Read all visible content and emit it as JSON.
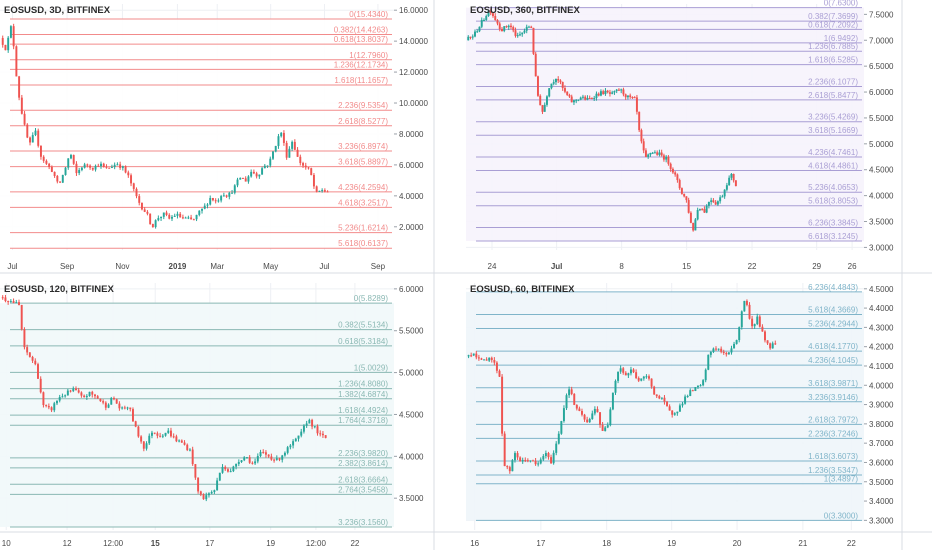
{
  "colors": {
    "up": "#26a69a",
    "down": "#ef5350",
    "axis_text": "#4a4a4a",
    "panel_border": "#d9dce3"
  },
  "chart_data": [
    {
      "type": "candlestick",
      "title": "EOSUSD, 3D, BITFINEX",
      "color": "#f28b8b",
      "fill": "#ffffff",
      "ylim": [
        0.5,
        16.4
      ],
      "yticks": [
        2,
        4,
        6,
        8,
        10,
        12,
        14,
        16
      ],
      "ytick_labels": [
        "2.0000",
        "4.0000",
        "6.0000",
        "8.0000",
        "10.0000",
        "12.0000",
        "14.0000",
        "16.0000"
      ],
      "xticks": [
        {
          "x": 0.032,
          "label": "Jul"
        },
        {
          "x": 0.172,
          "label": "Sep"
        },
        {
          "x": 0.314,
          "label": "Nov"
        },
        {
          "x": 0.455,
          "label": "2019",
          "bold": true
        },
        {
          "x": 0.557,
          "label": "Mar"
        },
        {
          "x": 0.694,
          "label": "May"
        },
        {
          "x": 0.832,
          "label": "Jul"
        },
        {
          "x": 0.969,
          "label": "Sep"
        }
      ],
      "fib_levels": [
        {
          "label": "0(15.4340)",
          "value": 15.434
        },
        {
          "label": "0.382(14.4263)",
          "value": 14.4263
        },
        {
          "label": "0.618(13.8037)",
          "value": 13.8037
        },
        {
          "label": "1(12.7960)",
          "value": 12.796
        },
        {
          "label": "1.236(12.1734)",
          "value": 12.1734
        },
        {
          "label": "1.618(11.1657)",
          "value": 11.1657
        },
        {
          "label": "2.236(9.5354)",
          "value": 9.5354
        },
        {
          "label": "2.618(8.5277)",
          "value": 8.5277
        },
        {
          "label": "3.236(6.8974)",
          "value": 6.8974
        },
        {
          "label": "3.618(5.8897)",
          "value": 5.8897
        },
        {
          "label": "4.236(4.2594)",
          "value": 4.2594
        },
        {
          "label": "4.618(3.2517)",
          "value": 3.2517
        },
        {
          "label": "5.236(1.6214)",
          "value": 1.6214
        },
        {
          "label": "5.618(0.6137)",
          "value": 0.6137
        }
      ],
      "price_path": [
        [
          0.0,
          14.2
        ],
        [
          0.015,
          13.5
        ],
        [
          0.03,
          15.1
        ],
        [
          0.045,
          11.0
        ],
        [
          0.06,
          8.8
        ],
        [
          0.075,
          7.2
        ],
        [
          0.09,
          8.2
        ],
        [
          0.105,
          6.6
        ],
        [
          0.12,
          6.0
        ],
        [
          0.135,
          5.6
        ],
        [
          0.15,
          4.6
        ],
        [
          0.165,
          5.6
        ],
        [
          0.18,
          6.8
        ],
        [
          0.195,
          5.4
        ],
        [
          0.21,
          5.9
        ],
        [
          0.225,
          6.0
        ],
        [
          0.24,
          5.8
        ],
        [
          0.255,
          6.1
        ],
        [
          0.27,
          5.7
        ],
        [
          0.285,
          5.9
        ],
        [
          0.3,
          6.1
        ],
        [
          0.315,
          5.8
        ],
        [
          0.33,
          5.2
        ],
        [
          0.345,
          4.2
        ],
        [
          0.36,
          3.4
        ],
        [
          0.375,
          2.9
        ],
        [
          0.39,
          2.0
        ],
        [
          0.405,
          2.6
        ],
        [
          0.42,
          2.8
        ],
        [
          0.435,
          2.5
        ],
        [
          0.45,
          2.8
        ],
        [
          0.465,
          2.6
        ],
        [
          0.48,
          2.5
        ],
        [
          0.495,
          2.4
        ],
        [
          0.51,
          2.9
        ],
        [
          0.525,
          3.3
        ],
        [
          0.54,
          3.9
        ],
        [
          0.555,
          3.6
        ],
        [
          0.57,
          4.2
        ],
        [
          0.585,
          4.0
        ],
        [
          0.6,
          4.5
        ],
        [
          0.615,
          5.2
        ],
        [
          0.63,
          5.0
        ],
        [
          0.645,
          5.6
        ],
        [
          0.66,
          5.3
        ],
        [
          0.675,
          5.9
        ],
        [
          0.69,
          6.1
        ],
        [
          0.705,
          7.2
        ],
        [
          0.72,
          8.2
        ],
        [
          0.735,
          6.6
        ],
        [
          0.75,
          7.6
        ],
        [
          0.765,
          6.3
        ],
        [
          0.78,
          5.9
        ],
        [
          0.795,
          5.6
        ],
        [
          0.81,
          4.1
        ],
        [
          0.825,
          4.4
        ],
        [
          0.84,
          4.25
        ]
      ]
    },
    {
      "type": "candlestick",
      "title": "EOSUSD, 360, BITFINEX",
      "color": "#a99ed4",
      "fill": "#f6f3fc",
      "ylim": [
        2.95,
        7.7
      ],
      "yticks": [
        3.0,
        3.5,
        4.0,
        4.5,
        5.0,
        5.5,
        6.0,
        6.5,
        7.0,
        7.5
      ],
      "ytick_labels": [
        "3.0000",
        "3.5000",
        "4.0000",
        "4.5000",
        "5.0000",
        "5.5000",
        "6.0000",
        "6.5000",
        "7.0000",
        "7.5000"
      ],
      "xticks": [
        {
          "x": 0.066,
          "label": "24"
        },
        {
          "x": 0.23,
          "label": "Jul",
          "bold": true
        },
        {
          "x": 0.395,
          "label": "8"
        },
        {
          "x": 0.56,
          "label": "15"
        },
        {
          "x": 0.726,
          "label": "22"
        },
        {
          "x": 0.89,
          "label": "29"
        },
        {
          "x": 0.98,
          "label": "26"
        }
      ],
      "fib_levels": [
        {
          "label": "0(7.6300)",
          "value": 7.63
        },
        {
          "label": "0.382(7.3699)",
          "value": 7.3699
        },
        {
          "label": "0.618(7.2092)",
          "value": 7.2092
        },
        {
          "label": "1(6.9492)",
          "value": 6.9492
        },
        {
          "label": "1.236(6.7885)",
          "value": 6.7885
        },
        {
          "label": "1.618(6.5285)",
          "value": 6.5285
        },
        {
          "label": "2.236(6.1077)",
          "value": 6.1077
        },
        {
          "label": "2.618(5.8477)",
          "value": 5.8477
        },
        {
          "label": "3.236(5.4269)",
          "value": 5.4269
        },
        {
          "label": "3.618(5.1669)",
          "value": 5.1669
        },
        {
          "label": "4.236(4.7461)",
          "value": 4.7461
        },
        {
          "label": "4.618(4.4861)",
          "value": 4.4861
        },
        {
          "label": "5.236(4.0653)",
          "value": 4.0653
        },
        {
          "label": "5.618(3.8053)",
          "value": 3.8053
        },
        {
          "label": "6.236(3.3845)",
          "value": 3.3845
        },
        {
          "label": "6.618(3.1245)",
          "value": 3.1245
        }
      ],
      "price_path": [
        [
          0.0,
          7.0
        ],
        [
          0.02,
          7.1
        ],
        [
          0.04,
          7.35
        ],
        [
          0.06,
          7.6
        ],
        [
          0.075,
          7.4
        ],
        [
          0.09,
          7.2
        ],
        [
          0.11,
          7.3
        ],
        [
          0.13,
          7.05
        ],
        [
          0.15,
          7.2
        ],
        [
          0.165,
          7.3
        ],
        [
          0.18,
          6.0
        ],
        [
          0.195,
          5.6
        ],
        [
          0.21,
          6.1
        ],
        [
          0.23,
          6.3
        ],
        [
          0.25,
          6.0
        ],
        [
          0.27,
          5.8
        ],
        [
          0.29,
          5.9
        ],
        [
          0.31,
          5.85
        ],
        [
          0.33,
          5.95
        ],
        [
          0.35,
          6.0
        ],
        [
          0.37,
          5.95
        ],
        [
          0.39,
          6.05
        ],
        [
          0.41,
          5.9
        ],
        [
          0.43,
          5.85
        ],
        [
          0.44,
          5.2
        ],
        [
          0.455,
          4.7
        ],
        [
          0.47,
          4.85
        ],
        [
          0.49,
          4.8
        ],
        [
          0.51,
          4.7
        ],
        [
          0.53,
          4.4
        ],
        [
          0.545,
          4.1
        ],
        [
          0.56,
          3.9
        ],
        [
          0.575,
          3.3
        ],
        [
          0.59,
          3.8
        ],
        [
          0.605,
          3.7
        ],
        [
          0.62,
          3.95
        ],
        [
          0.635,
          3.85
        ],
        [
          0.65,
          4.0
        ],
        [
          0.665,
          4.3
        ],
        [
          0.675,
          4.4
        ],
        [
          0.685,
          4.2
        ]
      ]
    },
    {
      "type": "candlestick",
      "title": "EOSUSD, 120, BITFINEX",
      "color": "#8ab8b3",
      "fill": "#f1f8fa",
      "ylim": [
        3.12,
        6.07
      ],
      "yticks": [
        3.5,
        4.0,
        4.5,
        5.0,
        5.5,
        6.0
      ],
      "ytick_labels": [
        "3.5000",
        "4.0000",
        "4.5000",
        "5.0000",
        "5.5000",
        "6.0000"
      ],
      "xticks": [
        {
          "x": 0.016,
          "label": "10"
        },
        {
          "x": 0.172,
          "label": "12"
        },
        {
          "x": 0.29,
          "label": "12:00"
        },
        {
          "x": 0.398,
          "label": "15",
          "bold": true
        },
        {
          "x": 0.538,
          "label": "17"
        },
        {
          "x": 0.694,
          "label": "19"
        },
        {
          "x": 0.81,
          "label": "12:00"
        },
        {
          "x": 0.91,
          "label": "22"
        }
      ],
      "fib_levels": [
        {
          "label": "0(5.8289)",
          "value": 5.8289
        },
        {
          "label": "0.382(5.5134)",
          "value": 5.5134
        },
        {
          "label": "0.618(5.3184)",
          "value": 5.3184
        },
        {
          "label": "1(5.0029)",
          "value": 5.0029
        },
        {
          "label": "1.236(4.8080)",
          "value": 4.808
        },
        {
          "label": "1.382(4.6874)",
          "value": 4.6874
        },
        {
          "label": "1.618(4.4924)",
          "value": 4.4924
        },
        {
          "label": "1.764(4.3718)",
          "value": 4.3718
        },
        {
          "label": "2.236(3.9820)",
          "value": 3.982
        },
        {
          "label": "2.382(3.8614)",
          "value": 3.8614
        },
        {
          "label": "2.618(3.6664)",
          "value": 3.6664
        },
        {
          "label": "2.764(3.5458)",
          "value": 3.5458
        },
        {
          "label": "3.236(3.1560)",
          "value": 3.156
        }
      ],
      "price_path": [
        [
          0.0,
          5.9
        ],
        [
          0.03,
          5.85
        ],
        [
          0.05,
          5.8
        ],
        [
          0.06,
          5.3
        ],
        [
          0.075,
          5.2
        ],
        [
          0.09,
          5.1
        ],
        [
          0.1,
          4.9
        ],
        [
          0.11,
          4.6
        ],
        [
          0.13,
          4.55
        ],
        [
          0.15,
          4.7
        ],
        [
          0.17,
          4.75
        ],
        [
          0.19,
          4.8
        ],
        [
          0.21,
          4.7
        ],
        [
          0.23,
          4.75
        ],
        [
          0.25,
          4.7
        ],
        [
          0.27,
          4.6
        ],
        [
          0.29,
          4.7
        ],
        [
          0.31,
          4.55
        ],
        [
          0.33,
          4.6
        ],
        [
          0.35,
          4.3
        ],
        [
          0.37,
          4.1
        ],
        [
          0.39,
          4.3
        ],
        [
          0.41,
          4.25
        ],
        [
          0.43,
          4.3
        ],
        [
          0.45,
          4.2
        ],
        [
          0.47,
          4.15
        ],
        [
          0.49,
          4.05
        ],
        [
          0.505,
          3.6
        ],
        [
          0.52,
          3.5
        ],
        [
          0.535,
          3.55
        ],
        [
          0.55,
          3.6
        ],
        [
          0.57,
          3.9
        ],
        [
          0.59,
          3.8
        ],
        [
          0.61,
          3.95
        ],
        [
          0.63,
          4.0
        ],
        [
          0.65,
          3.9
        ],
        [
          0.67,
          4.05
        ],
        [
          0.69,
          4.0
        ],
        [
          0.71,
          3.95
        ],
        [
          0.73,
          4.05
        ],
        [
          0.75,
          4.15
        ],
        [
          0.77,
          4.25
        ],
        [
          0.79,
          4.45
        ],
        [
          0.805,
          4.35
        ],
        [
          0.82,
          4.25
        ],
        [
          0.835,
          4.22
        ]
      ]
    },
    {
      "type": "candlestick",
      "title": "EOSUSD, 60, BITFINEX",
      "color": "#7fb4c9",
      "fill": "#eef5f9",
      "ylim": [
        3.25,
        4.53
      ],
      "yticks": [
        3.3,
        3.4,
        3.5,
        3.6,
        3.7,
        3.8,
        3.9,
        4.0,
        4.1,
        4.2,
        4.3,
        4.4,
        4.5
      ],
      "ytick_labels": [
        "3.3000",
        "3.4000",
        "3.5000",
        "3.6000",
        "3.7000",
        "3.8000",
        "3.9000",
        "4.0000",
        "4.1000",
        "4.2000",
        "4.3000",
        "4.4000",
        "4.5000"
      ],
      "xticks": [
        {
          "x": 0.022,
          "label": "16"
        },
        {
          "x": 0.19,
          "label": "17"
        },
        {
          "x": 0.357,
          "label": "18"
        },
        {
          "x": 0.522,
          "label": "19"
        },
        {
          "x": 0.688,
          "label": "20"
        },
        {
          "x": 0.855,
          "label": "21"
        },
        {
          "x": 0.978,
          "label": "22"
        }
      ],
      "fib_levels": [
        {
          "label": "6.236(4.4843)",
          "value": 4.4843
        },
        {
          "label": "5.618(4.3669)",
          "value": 4.3669
        },
        {
          "label": "5.236(4.2944)",
          "value": 4.2944
        },
        {
          "label": "4.618(4.1770)",
          "value": 4.177
        },
        {
          "label": "4.236(4.1045)",
          "value": 4.1045
        },
        {
          "label": "3.618(3.9871)",
          "value": 3.9871
        },
        {
          "label": "3.236(3.9146)",
          "value": 3.9146
        },
        {
          "label": "2.618(3.7972)",
          "value": 3.7972
        },
        {
          "label": "2.236(3.7246)",
          "value": 3.7246
        },
        {
          "label": "1.618(3.6073)",
          "value": 3.6073
        },
        {
          "label": "1.236(3.5347)",
          "value": 3.5347
        },
        {
          "label": "1(3.4897)",
          "value": 3.4897
        },
        {
          "label": "0(3.3000)",
          "value": 3.3
        }
      ],
      "price_path": [
        [
          0.0,
          4.15
        ],
        [
          0.02,
          4.17
        ],
        [
          0.04,
          4.12
        ],
        [
          0.06,
          4.15
        ],
        [
          0.075,
          4.1
        ],
        [
          0.085,
          4.05
        ],
        [
          0.095,
          3.6
        ],
        [
          0.11,
          3.55
        ],
        [
          0.125,
          3.65
        ],
        [
          0.14,
          3.6
        ],
        [
          0.16,
          3.62
        ],
        [
          0.18,
          3.58
        ],
        [
          0.2,
          3.65
        ],
        [
          0.215,
          3.6
        ],
        [
          0.23,
          3.7
        ],
        [
          0.245,
          3.85
        ],
        [
          0.26,
          4.0
        ],
        [
          0.275,
          3.9
        ],
        [
          0.29,
          3.85
        ],
        [
          0.31,
          3.8
        ],
        [
          0.33,
          3.9
        ],
        [
          0.345,
          3.75
        ],
        [
          0.36,
          3.8
        ],
        [
          0.375,
          4.0
        ],
        [
          0.39,
          4.1
        ],
        [
          0.405,
          4.05
        ],
        [
          0.42,
          4.08
        ],
        [
          0.44,
          4.02
        ],
        [
          0.46,
          4.05
        ],
        [
          0.48,
          3.95
        ],
        [
          0.5,
          3.92
        ],
        [
          0.52,
          3.85
        ],
        [
          0.54,
          3.88
        ],
        [
          0.56,
          3.95
        ],
        [
          0.58,
          3.98
        ],
        [
          0.6,
          4.0
        ],
        [
          0.615,
          4.15
        ],
        [
          0.63,
          4.2
        ],
        [
          0.645,
          4.18
        ],
        [
          0.66,
          4.15
        ],
        [
          0.675,
          4.2
        ],
        [
          0.69,
          4.25
        ],
        [
          0.705,
          4.45
        ],
        [
          0.715,
          4.4
        ],
        [
          0.725,
          4.3
        ],
        [
          0.74,
          4.35
        ],
        [
          0.755,
          4.25
        ],
        [
          0.77,
          4.2
        ],
        [
          0.785,
          4.22
        ]
      ]
    }
  ]
}
